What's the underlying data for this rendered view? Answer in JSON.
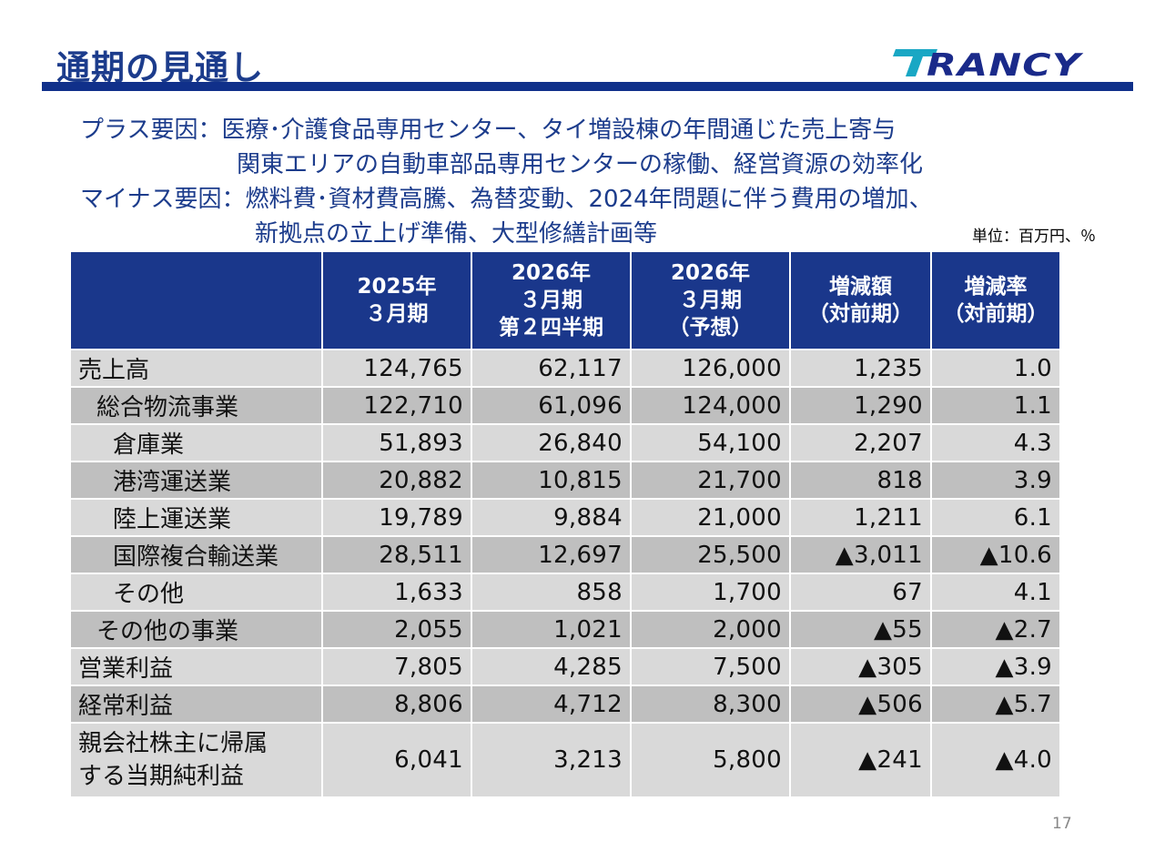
{
  "title": "通期の見通し",
  "logo": {
    "text": "TRANCY",
    "color": "#1a2a8a",
    "accent": "#19a7c4"
  },
  "factors": [
    {
      "label": "プラス要因：",
      "lines": [
        "医療･介護食品専用センター、タイ増設棟の年間通じた売上寄与",
        "関東エリアの自動車部品専用センターの稼働、経営資源の効率化"
      ]
    },
    {
      "label": "マイナス要因：",
      "lines": [
        "燃料費･資材費高騰、為替変動、2024年問題に伴う費用の増加、",
        "新拠点の立上げ準備、大型修繕計画等"
      ]
    }
  ],
  "unit": "単位：百万円、％",
  "table": {
    "headers": [
      {
        "lines": [
          ""
        ]
      },
      {
        "lines": [
          "2025年",
          "３月期"
        ]
      },
      {
        "lines": [
          "2026年",
          "３月期",
          "第２四半期"
        ]
      },
      {
        "lines": [
          "2026年",
          "３月期",
          "（予想）"
        ]
      },
      {
        "lines": [
          "増減額",
          "（対前期）"
        ]
      },
      {
        "lines": [
          "増減率",
          "（対前期）"
        ]
      }
    ],
    "rows": [
      {
        "label": "売上高",
        "level": 0,
        "values": [
          "124,765",
          "62,117",
          "126,000",
          "1,235",
          "1.0"
        ]
      },
      {
        "label": "総合物流事業",
        "level": 1,
        "values": [
          "122,710",
          "61,096",
          "124,000",
          "1,290",
          "1.1"
        ]
      },
      {
        "label": "倉庫業",
        "level": 2,
        "values": [
          "51,893",
          "26,840",
          "54,100",
          "2,207",
          "4.3"
        ]
      },
      {
        "label": "港湾運送業",
        "level": 2,
        "values": [
          "20,882",
          "10,815",
          "21,700",
          "818",
          "3.9"
        ]
      },
      {
        "label": "陸上運送業",
        "level": 2,
        "values": [
          "19,789",
          "9,884",
          "21,000",
          "1,211",
          "6.1"
        ]
      },
      {
        "label": "国際複合輸送業",
        "level": 2,
        "values": [
          "28,511",
          "12,697",
          "25,500",
          "▲3,011",
          "▲10.6"
        ]
      },
      {
        "label": "その他",
        "level": 2,
        "values": [
          "1,633",
          "858",
          "1,700",
          "67",
          "4.1"
        ]
      },
      {
        "label": "その他の事業",
        "level": 1,
        "values": [
          "2,055",
          "1,021",
          "2,000",
          "▲55",
          "▲2.7"
        ]
      },
      {
        "label": "営業利益",
        "level": 0,
        "values": [
          "7,805",
          "4,285",
          "7,500",
          "▲305",
          "▲3.9"
        ]
      },
      {
        "label": "経常利益",
        "level": 0,
        "values": [
          "8,806",
          "4,712",
          "8,300",
          "▲506",
          "▲5.7"
        ]
      },
      {
        "label": "親会社株主に帰属する当期純利益",
        "level": 0,
        "values": [
          "6,041",
          "3,213",
          "5,800",
          "▲241",
          "▲4.0"
        ]
      }
    ]
  },
  "page_number": "17"
}
